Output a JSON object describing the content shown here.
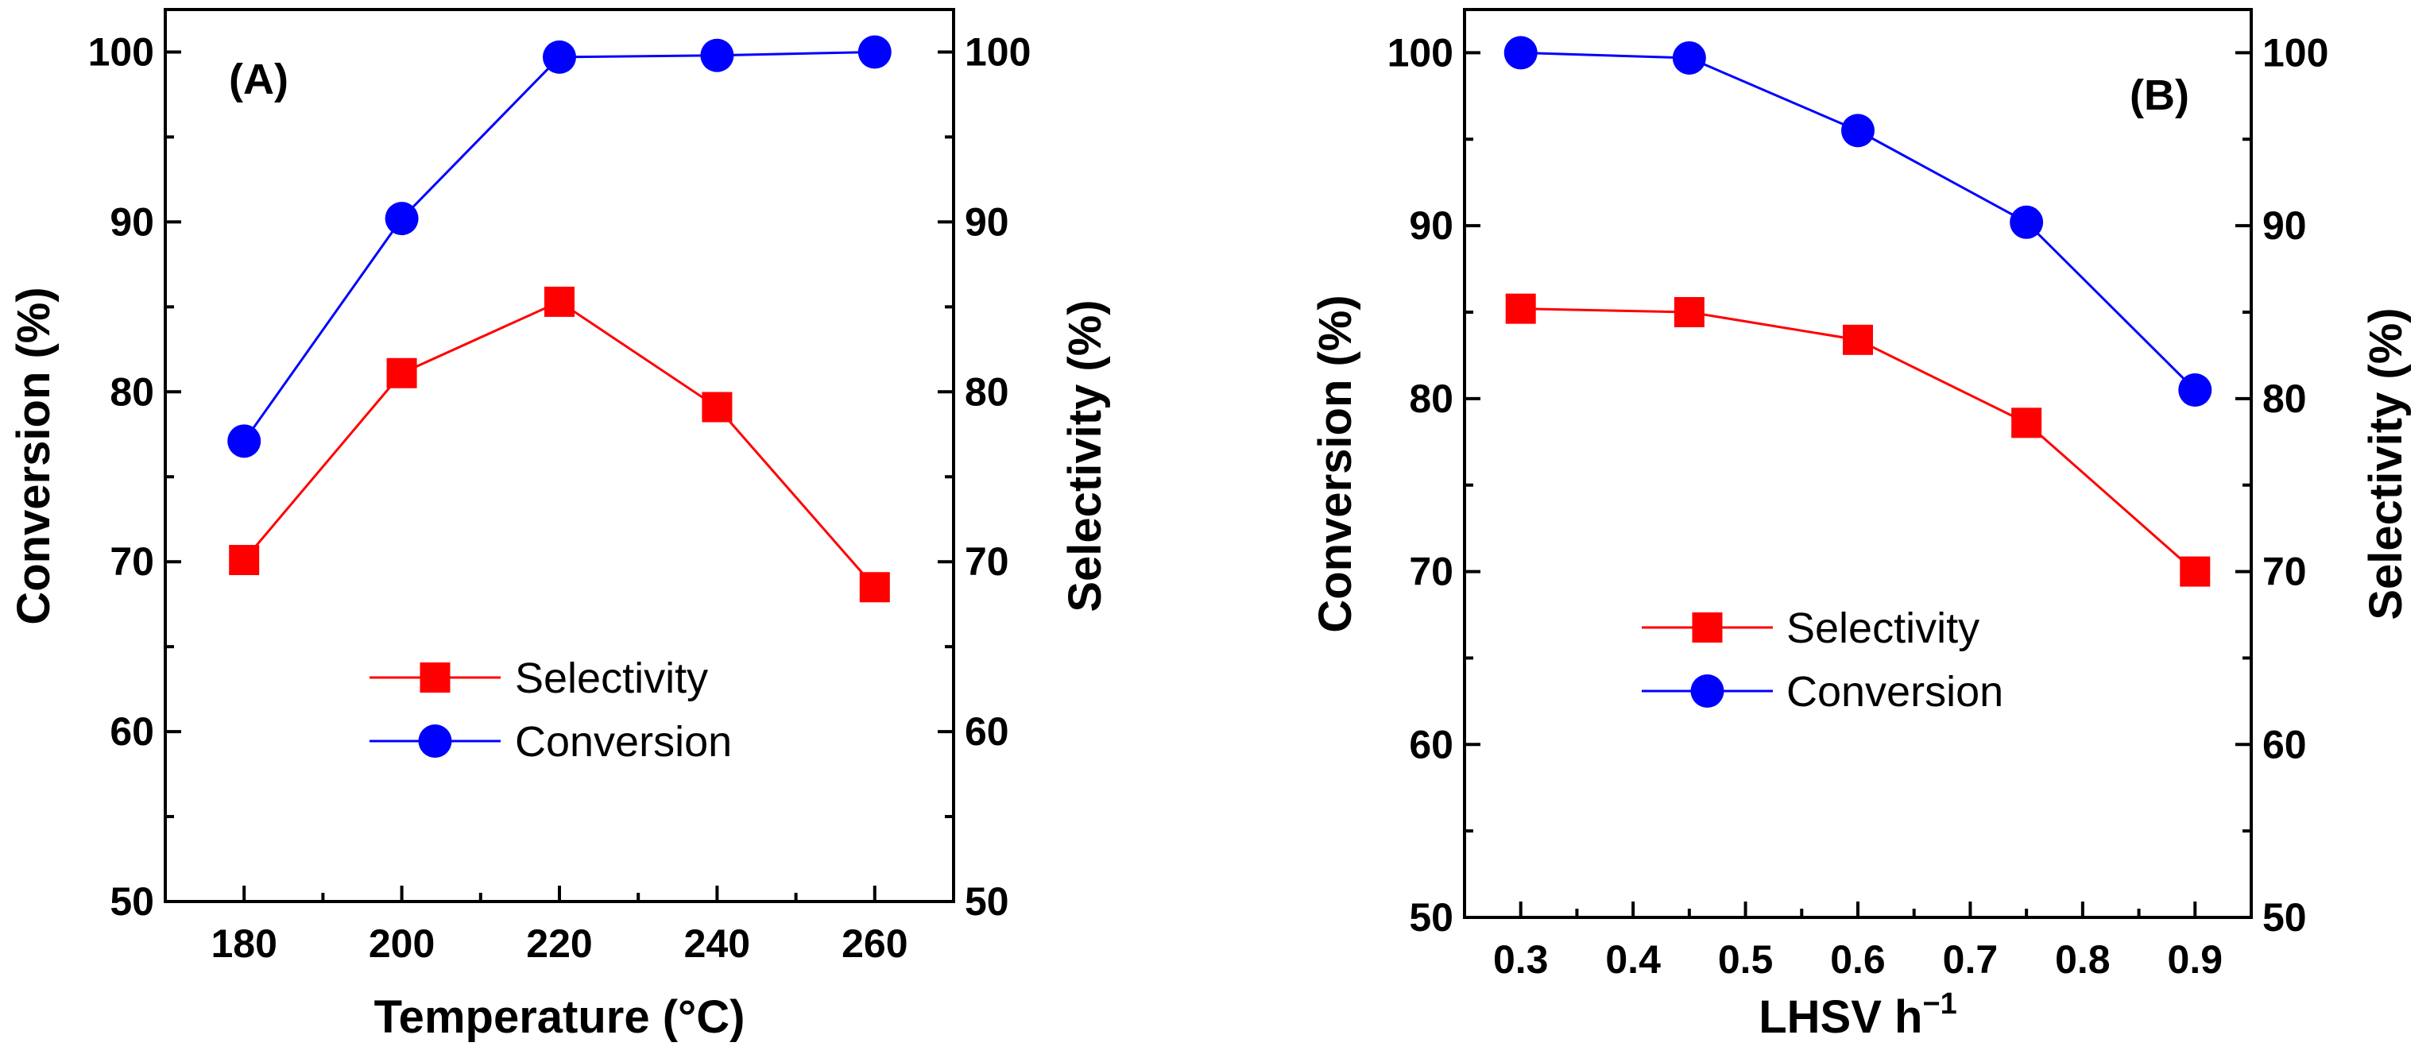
{
  "colors": {
    "selectivity": "#ff0000",
    "conversion": "#0000ff",
    "axis": "#000000"
  },
  "chart_data": [
    {
      "type": "line",
      "panel_label": "(A)",
      "xlabel": "Temperature (°C)",
      "ylabel": "Conversion (%)",
      "ylabel_right": "Selectivity (%)",
      "x": [
        180,
        200,
        220,
        240,
        260
      ],
      "x_ticks": [
        180,
        200,
        220,
        240,
        260
      ],
      "x_tick_labels": [
        "180",
        "200",
        "220",
        "240",
        "260"
      ],
      "xlim": [
        170,
        270
      ],
      "ylim": [
        50,
        102.5
      ],
      "y_ticks": [
        50,
        60,
        70,
        80,
        90,
        100
      ],
      "y_tick_labels": [
        "50",
        "60",
        "70",
        "80",
        "90",
        "100"
      ],
      "legend_position": "center",
      "series": [
        {
          "name": "Selectivity",
          "marker": "square",
          "color": "#ff0000",
          "values": [
            70.1,
            81.1,
            85.3,
            79.1,
            68.5
          ]
        },
        {
          "name": "Conversion",
          "marker": "circle",
          "color": "#0000ff",
          "values": [
            77.1,
            90.2,
            99.7,
            99.8,
            100
          ]
        }
      ]
    },
    {
      "type": "line",
      "panel_label": "(B)",
      "xlabel": "LHSV h",
      "xlabel_sup": "−1",
      "ylabel": "Conversion (%)",
      "ylabel_right": "Selectivity (%)",
      "x": [
        0.3,
        0.45,
        0.6,
        0.75,
        0.9
      ],
      "x_ticks": [
        0.3,
        0.4,
        0.5,
        0.6,
        0.7,
        0.8,
        0.9
      ],
      "x_tick_labels": [
        "0.3",
        "0.4",
        "0.5",
        "0.6",
        "0.7",
        "0.8",
        "0.9"
      ],
      "xlim": [
        0.25,
        0.95
      ],
      "ylim": [
        50,
        102.5
      ],
      "y_ticks": [
        50,
        60,
        70,
        80,
        90,
        100
      ],
      "y_tick_labels": [
        "50",
        "60",
        "70",
        "80",
        "90",
        "100"
      ],
      "legend_position": "center-left",
      "series": [
        {
          "name": "Selectivity",
          "marker": "square",
          "color": "#ff0000",
          "values": [
            85.2,
            85.0,
            83.4,
            78.6,
            70.0
          ]
        },
        {
          "name": "Conversion",
          "marker": "circle",
          "color": "#0000ff",
          "values": [
            100,
            99.7,
            95.5,
            90.2,
            80.5
          ]
        }
      ]
    }
  ]
}
